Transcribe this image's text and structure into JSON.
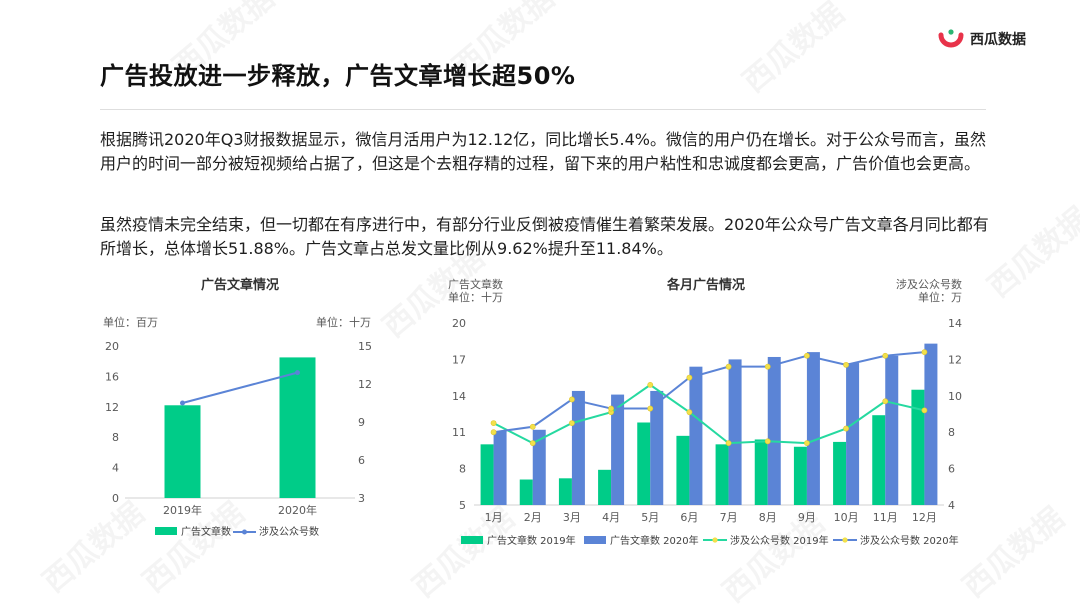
{
  "brand": {
    "name": "西瓜数据",
    "watermark": "西瓜数据"
  },
  "slide": {
    "title": "广告投放进一步释放，广告文章增长超50%",
    "paragraphs": [
      "根据腾讯2020年Q3财报数据显示，微信月活用户为12.12亿，同比增长5.4%。微信的用户仍在增长。对于公众号而言，虽然用户的时间一部分被短视频给占据了，但这是个去粗存精的过程，留下来的用户粘性和忠诚度都会更高，广告价值也会更高。",
      "虽然疫情未完全结束，但一切都在有序进行中，有部分行业反倒被疫情催生着繁荣发展。2020年公众号广告文章各月同比都有所增长，总体增长51.88%。广告文章占总发文量比例从9.62%提升至11.84%。"
    ]
  },
  "colors": {
    "green": "#00cc88",
    "blue": "#5b84d6",
    "line_2019": "#26d9a0",
    "line_2020": "#5b84d6",
    "marker": "#f2e14b"
  },
  "chart_data": [
    {
      "type": "bar",
      "title": "广告文章情况",
      "left_unit": "单位：百万",
      "right_unit": "单位：十万",
      "categories": [
        "2019年",
        "2020年"
      ],
      "ylim": [
        0,
        20
      ],
      "yticks": [
        0,
        4,
        8,
        12,
        16,
        20
      ],
      "y2lim": [
        3,
        15
      ],
      "y2ticks": [
        3,
        6,
        9,
        12,
        15
      ],
      "series": [
        {
          "name": "广告文章数",
          "kind": "bar",
          "axis": "left",
          "values": [
            12.2,
            18.5
          ]
        },
        {
          "name": "涉及公众号数",
          "kind": "line",
          "axis": "right",
          "values": [
            10.5,
            12.9
          ]
        }
      ],
      "legend": "bottom"
    },
    {
      "type": "bar",
      "title": "各月广告情况",
      "left_unit": [
        "广告文章数",
        "单位：十万"
      ],
      "right_unit": [
        "涉及公众号数",
        "单位：万"
      ],
      "categories": [
        "1月",
        "2月",
        "3月",
        "4月",
        "5月",
        "6月",
        "7月",
        "8月",
        "9月",
        "10月",
        "11月",
        "12月"
      ],
      "ylim": [
        5,
        20
      ],
      "yticks": [
        5,
        8,
        11,
        14,
        17,
        20
      ],
      "y2lim": [
        4,
        14
      ],
      "y2ticks": [
        4,
        6,
        8,
        10,
        12,
        14
      ],
      "series": [
        {
          "name": "广告文章数 2019年",
          "kind": "bar",
          "axis": "left",
          "values": [
            10.0,
            7.1,
            7.2,
            7.9,
            11.8,
            10.7,
            10.0,
            10.4,
            9.8,
            10.2,
            12.4,
            14.5
          ]
        },
        {
          "name": "广告文章数 2020年",
          "kind": "bar",
          "axis": "left",
          "values": [
            11.1,
            11.2,
            14.4,
            14.1,
            14.4,
            16.4,
            17.0,
            17.2,
            17.6,
            16.7,
            17.3,
            18.3
          ]
        },
        {
          "name": "涉及公众号数 2019年",
          "kind": "line",
          "axis": "right",
          "values": [
            8.5,
            7.4,
            8.5,
            9.1,
            10.6,
            9.1,
            7.4,
            7.5,
            7.4,
            8.2,
            9.7,
            9.2
          ]
        },
        {
          "name": "涉及公众号数 2020年",
          "kind": "line",
          "axis": "right",
          "values": [
            8.0,
            8.3,
            9.8,
            9.3,
            9.3,
            11.0,
            11.6,
            11.6,
            12.2,
            11.7,
            12.2,
            12.4
          ]
        }
      ],
      "legend": "bottom"
    }
  ]
}
